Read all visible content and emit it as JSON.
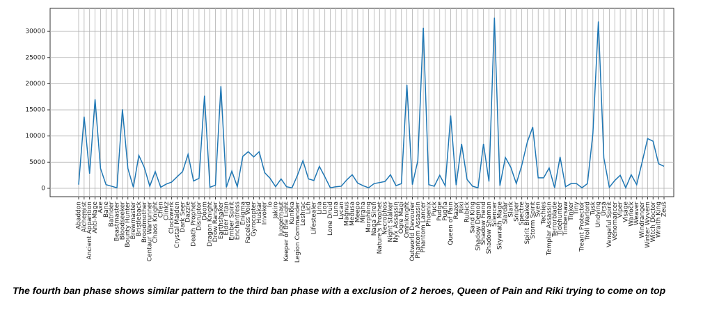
{
  "chart_data": {
    "type": "line",
    "caption": "The fourth ban phase shows similar pattern to the third ban phase with a exclusion of 2 heroes, Queen of Pain and Riki trying to come on top",
    "categories": [
      "Abaddon",
      "Alchemist",
      "Ancient Apparition",
      "Anti-Mage",
      "Axe",
      "Bane",
      "Batrider",
      "Beastmaster",
      "Bloodseeker",
      "Bounty Hunter",
      "Brewmaster",
      "Bristleback",
      "Broodmother",
      "Centaur Warrunner",
      "Chaos Knight",
      "Chen",
      "Clinkz",
      "Clockwerk",
      "Crystal Maiden",
      "Dark Seer",
      "Dazzle",
      "Death Prophet",
      "Disruptor",
      "Doom",
      "Dragon Knight",
      "Drow Ranger",
      "Earthshaker",
      "Elder Titan",
      "Ember Spirit",
      "Enchantress",
      "Enigma",
      "Faceless Void",
      "Gyrocopter",
      "Huskar",
      "Invoker",
      "Io",
      "Jakiro",
      "Juggernaut",
      "Keeper of the Light",
      "Kunkka",
      "Legion Commander",
      "Leshrac",
      "Lich",
      "Lifestealer",
      "Lina",
      "Lion",
      "Lone Druid",
      "Luna",
      "Lycan",
      "Magnus",
      "Medusa",
      "Meepo",
      "Mirana",
      "Morphling",
      "Naga Siren",
      "Nature's Prophet",
      "Necrophos",
      "Night Stalker",
      "Nyx Assassin",
      "Ogre Magi",
      "Omniknight",
      "Outworld Devourer",
      "Phantom Assassin",
      "Phantom Lancer",
      "Phoenix",
      "Puck",
      "Pudge",
      "Pugna",
      "Queen of Pain",
      "Razor",
      "Riki",
      "Rubick",
      "Sand King",
      "Shadow Demon",
      "Shadow Fiend",
      "Shadow Shaman",
      "Silencer",
      "Skywrath Mage",
      "Slardar",
      "Slark",
      "Sniper",
      "Spectre",
      "Spirit Breaker",
      "Storm Spirit",
      "Sven",
      "Techies",
      "Templar Assassin",
      "Terrorblade",
      "Tidehunter",
      "Timbersaw",
      "Tinker",
      "Tiny",
      "Treant Protector",
      "Troll Warlord",
      "Tusk",
      "Undying",
      "Ursa",
      "Vengeful Spirit",
      "Venomancer",
      "Viper",
      "Visage",
      "Warlock",
      "Weaver",
      "Windranger",
      "Winter Wyvern",
      "Witch Doctor",
      "Wraith King",
      "Zeus"
    ],
    "values": [
      700,
      13700,
      2800,
      17000,
      3800,
      700,
      400,
      100,
      15100,
      3800,
      200,
      6300,
      4000,
      400,
      3200,
      200,
      800,
      1200,
      2200,
      3200,
      6500,
      1400,
      1900,
      17700,
      200,
      600,
      19500,
      200,
      3300,
      300,
      6100,
      7000,
      6000,
      7000,
      3000,
      1900,
      300,
      1800,
      300,
      100,
      2500,
      5300,
      1800,
      1500,
      4200,
      2200,
      100,
      300,
      400,
      1600,
      2600,
      1000,
      500,
      100,
      900,
      1100,
      1300,
      2600,
      500,
      900,
      19800,
      700,
      5300,
      30700,
      700,
      400,
      2500,
      500,
      13900,
      600,
      8500,
      1700,
      400,
      100,
      8500,
      1300,
      32600,
      500,
      5900,
      4000,
      900,
      4400,
      8800,
      11700,
      2000,
      2000,
      3900,
      100,
      6000,
      300,
      900,
      900,
      100,
      900,
      10500,
      31900,
      5800,
      200,
      1500,
      2500,
      100,
      2600,
      700,
      5000,
      9500,
      9000,
      4700,
      4200
    ],
    "color": "#1f77b4",
    "ylim": [
      -1600,
      34400
    ],
    "yticks": [
      0,
      5000,
      10000,
      15000,
      20000,
      25000,
      30000
    ],
    "grid": true
  }
}
